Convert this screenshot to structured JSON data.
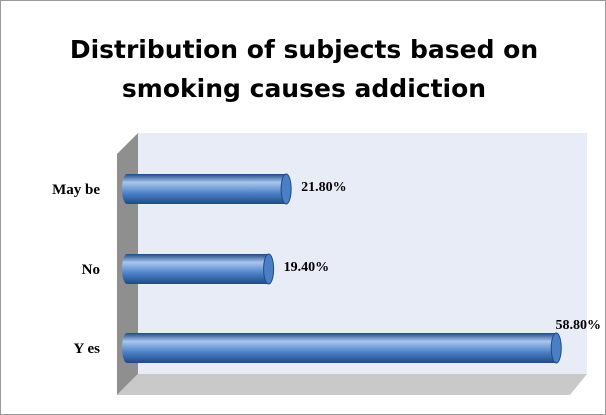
{
  "chart_data": {
    "type": "bar",
    "orientation": "horizontal",
    "style": "3d-cylinder",
    "title_lines": [
      "Distribution of subjects based on",
      "smoking causes addiction"
    ],
    "categories": [
      "May be",
      "No",
      "Y es"
    ],
    "values": [
      21.8,
      19.4,
      58.8
    ],
    "value_labels": [
      "21.80%",
      "19.40%",
      "58.80%"
    ],
    "xlim": [
      0,
      100
    ],
    "grid": false,
    "legend": "none",
    "colors": {
      "bar": "#4a7fc6",
      "bar_dark": "#1f4a85",
      "bar_light": "#a9c6ee",
      "wall": "#e8ecf6",
      "side_wall": "#8f8f8f",
      "floor": "#c9c9c9"
    }
  }
}
